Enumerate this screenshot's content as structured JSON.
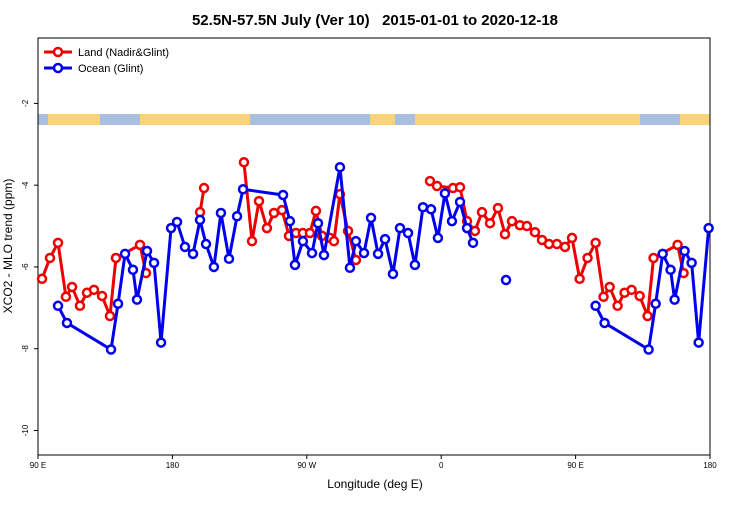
{
  "chart_data": {
    "type": "line",
    "title": "52.5N-57.5N July (Ver 10)   2015-01-01 to 2020-12-18",
    "x_label": "Longitude (deg E)",
    "y_label": "XCO2 - MLO trend (ppm)",
    "xlim": [
      90,
      540
    ],
    "xticks": [
      {
        "value": 90,
        "label": "90 E"
      },
      180,
      {
        "value": 270,
        "label": "90 W"
      },
      {
        "value": 360,
        "label": "0"
      },
      {
        "value": 450,
        "label": "90 E"
      },
      {
        "value": 540,
        "label": "180"
      }
    ],
    "ylim": [
      -10.6,
      -0.4
    ],
    "yticks": [
      -10,
      -8,
      -6,
      -4,
      -2
    ],
    "legend": "top-left",
    "series": [
      {
        "name": "Land (Nadir&Glint)",
        "color": "#ee0000",
        "x": [
          92.7,
          98.0,
          103.4,
          108.7,
          112.8,
          118.1,
          122.8,
          127.5,
          132.9,
          138.2,
          142.2,
          158.3,
          162.3,
          null,
          198.5,
          201.2,
          null,
          227.9,
          233.3,
          238.0,
          243.3,
          248.0,
          253.4,
          258.1,
          262.8,
          267.4,
          272.1,
          276.1,
          280.2,
          285.5,
          288.2,
          292.2,
          297.6,
          302.9,
          null,
          352.5,
          357.2,
          367.9,
          372.6,
          377.3,
          382.6,
          387.3,
          392.7,
          398.0,
          402.7,
          407.4,
          412.7,
          417.4,
          422.8,
          427.5,
          432.2,
          437.5,
          442.9,
          447.6,
          452.7,
          458.0,
          463.4,
          468.7,
          472.8,
          478.1,
          482.8,
          487.5,
          492.9,
          498.2,
          502.2,
          518.3,
          522.3
        ],
        "values": [
          -6.29,
          -5.78,
          -5.41,
          -6.73,
          -6.49,
          -6.95,
          -6.63,
          -6.56,
          -6.71,
          -7.2,
          -5.78,
          -5.46,
          -6.15,
          null,
          -4.66,
          -4.07,
          null,
          -3.44,
          -5.37,
          -4.39,
          -5.05,
          -4.68,
          -4.61,
          -5.24,
          -5.17,
          -5.17,
          -5.17,
          -4.63,
          -5.24,
          -5.29,
          -5.37,
          -4.22,
          -5.12,
          -5.83,
          null,
          -3.9,
          -4.02,
          -4.07,
          -4.05,
          -4.88,
          -5.12,
          -4.66,
          -4.93,
          -4.56,
          -5.2,
          -4.88,
          -4.98,
          -5.0,
          -5.15,
          -5.34,
          -5.44,
          -5.44,
          -5.51,
          -5.29,
          -6.29,
          -5.78,
          -5.41,
          -6.73,
          -6.49,
          -6.95,
          -6.63,
          -6.56,
          -6.71,
          -7.2,
          -5.78,
          -5.46,
          -6.15
        ]
      },
      {
        "name": "Ocean (Glint)",
        "color": "#0000ee",
        "x": [
          103.4,
          109.4,
          138.9,
          143.6,
          148.3,
          153.6,
          156.3,
          163.0,
          167.7,
          172.4,
          179.1,
          183.1,
          188.4,
          193.8,
          198.5,
          202.5,
          207.8,
          212.5,
          217.9,
          223.3,
          227.3,
          254.1,
          258.7,
          262.1,
          267.4,
          273.5,
          277.5,
          281.5,
          292.2,
          298.9,
          302.9,
          308.3,
          313.0,
          317.7,
          322.4,
          327.7,
          332.4,
          337.8,
          342.4,
          347.8,
          353.2,
          357.8,
          362.5,
          367.2,
          372.6,
          377.3,
          381.3,
          null,
          403.4,
          null,
          463.4,
          469.4,
          498.9,
          503.6,
          508.3,
          513.6,
          516.3,
          523.0,
          527.7,
          532.4,
          539.1
        ],
        "values": [
          -6.95,
          -7.37,
          -8.02,
          -6.9,
          -5.68,
          -6.07,
          -6.8,
          -5.61,
          -5.9,
          -7.85,
          -5.05,
          -4.9,
          -5.51,
          -5.68,
          -4.85,
          -5.44,
          -6.0,
          -4.68,
          -5.8,
          -4.76,
          -4.1,
          -4.24,
          -4.88,
          -5.95,
          -5.37,
          -5.66,
          -4.93,
          -5.71,
          -3.56,
          -6.02,
          -5.37,
          -5.66,
          -4.8,
          -5.68,
          -5.32,
          -6.17,
          -5.05,
          -5.17,
          -5.95,
          -4.54,
          -4.59,
          -5.29,
          -4.2,
          -4.88,
          -4.41,
          -5.05,
          -5.41,
          null,
          -6.32,
          null,
          -6.95,
          -7.37,
          -8.02,
          -6.9,
          -5.68,
          -6.07,
          -6.8,
          -5.61,
          -5.9,
          -7.85,
          -5.05
        ]
      }
    ]
  }
}
